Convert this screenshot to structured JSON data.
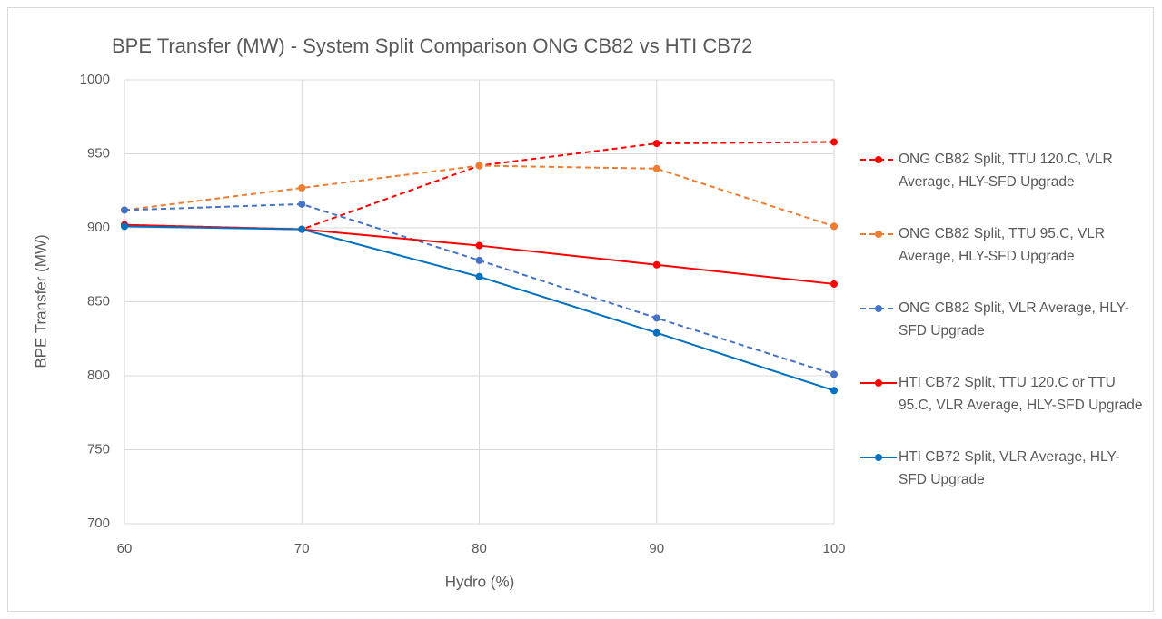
{
  "chart_data": {
    "type": "line",
    "title": "BPE Transfer (MW) - System Split Comparison ONG CB82 vs HTI CB72",
    "x_label": "Hydro (%)",
    "y_label": "BPE Transfer (MW)",
    "x": [
      60,
      70,
      80,
      90,
      100
    ],
    "xlim": [
      60,
      100
    ],
    "xticks": [
      60,
      70,
      80,
      90,
      100
    ],
    "ylim": [
      700,
      1000
    ],
    "yticks": [
      700,
      750,
      800,
      850,
      900,
      950,
      1000
    ],
    "grid": true,
    "legend": "right",
    "series": [
      {
        "name": "ONG CB82 Split, TTU 120.C, VLR Average, HLY-SFD Upgrade",
        "color": "#ff0000",
        "dashed": true,
        "values": [
          902,
          899,
          942,
          957,
          958
        ]
      },
      {
        "name": "ONG CB82 Split, TTU 95.C, VLR Average, HLY-SFD Upgrade",
        "color": "#ed7d31",
        "dashed": true,
        "values": [
          912,
          927,
          942,
          940,
          901
        ]
      },
      {
        "name": "ONG CB82 Split, VLR Average, HLY-SFD Upgrade",
        "color": "#4472c4",
        "dashed": true,
        "values": [
          912,
          916,
          878,
          839,
          801
        ]
      },
      {
        "name": "HTI CB72 Split, TTU 120.C or TTU 95.C, VLR Average, HLY-SFD Upgrade",
        "color": "#ff0000",
        "dashed": false,
        "values": [
          902,
          899,
          888,
          875,
          862
        ]
      },
      {
        "name": "HTI CB72 Split, VLR Average, HLY-SFD Upgrade",
        "color": "#0070c0",
        "dashed": false,
        "values": [
          901,
          899,
          867,
          829,
          790
        ]
      }
    ]
  }
}
